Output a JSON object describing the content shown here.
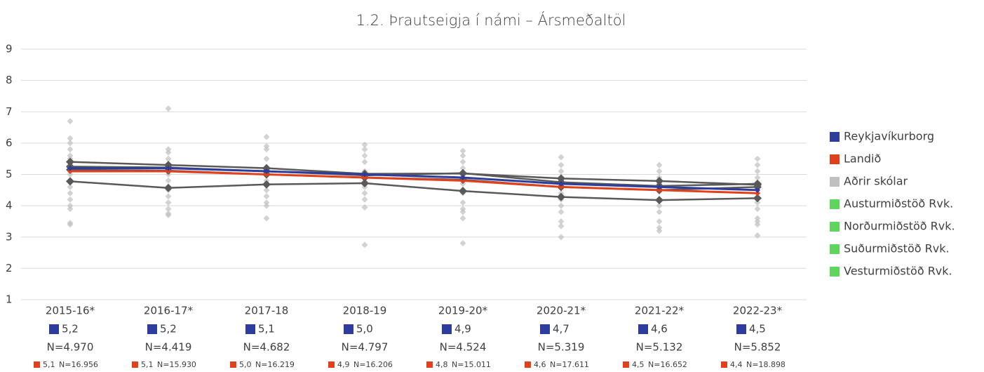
{
  "chart_data": {
    "type": "line",
    "title": "1.2. Þrautseigja í námi – Ársmeðaltöl",
    "categories": [
      "2015-16*",
      "2016-17*",
      "2017-18",
      "2018-19",
      "2019-20*",
      "2020-21*",
      "2021-22*",
      "2022-23*"
    ],
    "ylim": [
      1,
      9
    ],
    "yticks": [
      1,
      2,
      3,
      4,
      5,
      6,
      7,
      8,
      9
    ],
    "grid": true,
    "legend": "right",
    "series": [
      {
        "name": "Reykjavíkurborg",
        "color": "#2e3c9c",
        "style": "line",
        "values": [
          5.2,
          5.2,
          5.1,
          5.0,
          4.9,
          4.7,
          4.6,
          4.5
        ],
        "value_labels": [
          "5,2",
          "5,2",
          "5,1",
          "5,0",
          "4,9",
          "4,7",
          "4,6",
          "4,5"
        ],
        "n_labels": [
          "N=4.970",
          "N=4.419",
          "N=4.682",
          "N=4.797",
          "N=4.524",
          "N=5.319",
          "N=5.132",
          "N=5.852"
        ]
      },
      {
        "name": "Landið",
        "color": "#e0401a",
        "style": "line",
        "values": [
          5.1,
          5.1,
          5.0,
          4.9,
          4.8,
          4.6,
          4.5,
          4.4
        ],
        "value_labels": [
          "5,1",
          "5,1",
          "5,0",
          "4,9",
          "4,8",
          "4,6",
          "4,5",
          "4,4"
        ],
        "n_labels": [
          "N=16.956",
          "N=15.930",
          "N=16.219",
          "N=16.206",
          "N=15.011",
          "N=17.611",
          "N=16.652",
          "N=18.898"
        ]
      },
      {
        "name": "Aðrir skólar",
        "color": "#c0c0c0",
        "style": "markers",
        "values": [
          [
            6.7,
            6.15,
            6.0,
            5.8,
            5.6,
            5.5,
            5.3,
            5.0,
            4.8,
            4.6,
            4.4,
            4.2,
            4.0,
            3.9,
            3.45,
            3.4
          ],
          [
            7.1,
            5.8,
            5.7,
            5.5,
            5.3,
            5.0,
            4.8,
            4.5,
            4.3,
            4.1,
            3.9,
            3.75,
            3.7
          ],
          [
            6.2,
            5.9,
            5.8,
            5.5,
            5.2,
            5.0,
            4.8,
            4.5,
            4.3,
            4.1,
            4.0,
            3.6
          ],
          [
            5.95,
            5.8,
            5.6,
            5.4,
            5.1,
            4.9,
            4.6,
            4.4,
            4.2,
            3.95,
            2.75
          ],
          [
            5.75,
            5.6,
            5.4,
            5.2,
            4.9,
            4.7,
            4.4,
            4.1,
            3.9,
            3.8,
            3.6,
            2.8
          ],
          [
            5.55,
            5.3,
            5.1,
            4.9,
            4.6,
            4.4,
            4.2,
            4.0,
            3.8,
            3.5,
            3.35,
            3.0
          ],
          [
            5.3,
            5.1,
            4.9,
            4.7,
            4.5,
            4.2,
            4.0,
            3.8,
            3.5,
            3.3,
            3.2
          ],
          [
            5.5,
            5.3,
            5.1,
            4.9,
            4.6,
            4.4,
            4.1,
            3.9,
            3.6,
            3.5,
            3.4,
            3.05
          ]
        ]
      },
      {
        "name": "Austurmiðstöð Rvk.",
        "color": "#5cd65c",
        "line_color": "#595959",
        "style": "line_markers",
        "values": [
          5.4,
          5.3,
          5.2,
          5.02,
          5.03,
          4.87,
          4.79,
          4.67
        ]
      },
      {
        "name": "Norðurmiðstöð Rvk.",
        "color": "#5cd65c",
        "line_color": "#595959",
        "style": "line_markers",
        "values": [
          5.25,
          5.22,
          5.1,
          4.97,
          5.04,
          4.75,
          4.63,
          4.7
        ]
      },
      {
        "name": "Suðurmiðstöð Rvk.",
        "color": "#5cd65c",
        "line_color": "#595959",
        "style": "line_markers",
        "values": [
          5.15,
          5.12,
          5.0,
          4.9,
          4.83,
          4.6,
          4.5,
          4.6
        ]
      },
      {
        "name": "Vesturmiðstöð Rvk.",
        "color": "#5cd65c",
        "line_color": "#595959",
        "style": "line_markers",
        "values": [
          4.78,
          4.57,
          4.68,
          4.72,
          4.47,
          4.28,
          4.18,
          4.24
        ]
      }
    ]
  }
}
